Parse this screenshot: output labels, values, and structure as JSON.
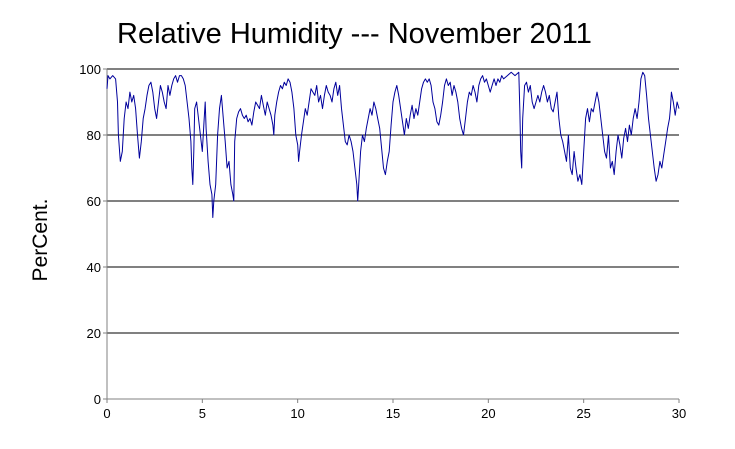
{
  "chart_data": {
    "type": "line",
    "title": "Relative Humidity --- November 2011",
    "xlabel": "",
    "ylabel": "PerCent.",
    "xlim": [
      0,
      30
    ],
    "ylim": [
      0,
      100
    ],
    "xticks": [
      0,
      5,
      10,
      15,
      20,
      25,
      30
    ],
    "yticks": [
      0,
      20,
      40,
      60,
      80,
      100
    ],
    "grid": "horizontal",
    "line_color": "#00009c",
    "series": [
      {
        "values": [
          [
            0.0,
            94
          ],
          [
            0.05,
            98
          ],
          [
            0.15,
            97
          ],
          [
            0.3,
            98
          ],
          [
            0.45,
            97
          ],
          [
            0.55,
            90
          ],
          [
            0.6,
            80
          ],
          [
            0.7,
            72
          ],
          [
            0.8,
            75
          ],
          [
            0.9,
            85
          ],
          [
            1.0,
            90
          ],
          [
            1.1,
            88
          ],
          [
            1.2,
            93
          ],
          [
            1.3,
            90
          ],
          [
            1.4,
            92
          ],
          [
            1.5,
            88
          ],
          [
            1.6,
            80
          ],
          [
            1.7,
            73
          ],
          [
            1.8,
            78
          ],
          [
            1.9,
            85
          ],
          [
            2.0,
            88
          ],
          [
            2.1,
            92
          ],
          [
            2.2,
            95
          ],
          [
            2.3,
            96
          ],
          [
            2.4,
            93
          ],
          [
            2.5,
            88
          ],
          [
            2.6,
            85
          ],
          [
            2.7,
            90
          ],
          [
            2.8,
            95
          ],
          [
            2.9,
            93
          ],
          [
            3.0,
            90
          ],
          [
            3.1,
            88
          ],
          [
            3.2,
            95
          ],
          [
            3.3,
            92
          ],
          [
            3.4,
            95
          ],
          [
            3.5,
            97
          ],
          [
            3.6,
            98
          ],
          [
            3.7,
            96
          ],
          [
            3.8,
            98
          ],
          [
            3.9,
            98
          ],
          [
            4.0,
            97
          ],
          [
            4.1,
            95
          ],
          [
            4.2,
            90
          ],
          [
            4.3,
            85
          ],
          [
            4.4,
            78
          ],
          [
            4.45,
            70
          ],
          [
            4.5,
            65
          ],
          [
            4.55,
            75
          ],
          [
            4.6,
            88
          ],
          [
            4.7,
            90
          ],
          [
            4.8,
            85
          ],
          [
            4.9,
            80
          ],
          [
            5.0,
            75
          ],
          [
            5.1,
            85
          ],
          [
            5.15,
            90
          ],
          [
            5.2,
            82
          ],
          [
            5.3,
            72
          ],
          [
            5.4,
            65
          ],
          [
            5.5,
            62
          ],
          [
            5.55,
            55
          ],
          [
            5.6,
            60
          ],
          [
            5.7,
            65
          ],
          [
            5.8,
            80
          ],
          [
            5.9,
            88
          ],
          [
            6.0,
            92
          ],
          [
            6.1,
            85
          ],
          [
            6.2,
            78
          ],
          [
            6.3,
            70
          ],
          [
            6.4,
            72
          ],
          [
            6.5,
            65
          ],
          [
            6.6,
            62
          ],
          [
            6.65,
            60
          ],
          [
            6.7,
            78
          ],
          [
            6.8,
            85
          ],
          [
            6.9,
            87
          ],
          [
            7.0,
            88
          ],
          [
            7.1,
            86
          ],
          [
            7.2,
            85
          ],
          [
            7.3,
            86
          ],
          [
            7.4,
            84
          ],
          [
            7.5,
            85
          ],
          [
            7.6,
            83
          ],
          [
            7.7,
            87
          ],
          [
            7.8,
            90
          ],
          [
            7.9,
            89
          ],
          [
            8.0,
            88
          ],
          [
            8.1,
            92
          ],
          [
            8.2,
            89
          ],
          [
            8.3,
            86
          ],
          [
            8.4,
            90
          ],
          [
            8.5,
            88
          ],
          [
            8.6,
            86
          ],
          [
            8.7,
            83
          ],
          [
            8.75,
            80
          ],
          [
            8.8,
            86
          ],
          [
            8.9,
            90
          ],
          [
            9.0,
            93
          ],
          [
            9.1,
            95
          ],
          [
            9.2,
            94
          ],
          [
            9.3,
            96
          ],
          [
            9.4,
            95
          ],
          [
            9.5,
            97
          ],
          [
            9.6,
            96
          ],
          [
            9.7,
            93
          ],
          [
            9.8,
            88
          ],
          [
            9.9,
            80
          ],
          [
            10.0,
            77
          ],
          [
            10.05,
            72
          ],
          [
            10.1,
            75
          ],
          [
            10.2,
            80
          ],
          [
            10.3,
            84
          ],
          [
            10.4,
            88
          ],
          [
            10.5,
            86
          ],
          [
            10.6,
            90
          ],
          [
            10.7,
            94
          ],
          [
            10.8,
            93
          ],
          [
            10.9,
            92
          ],
          [
            11.0,
            95
          ],
          [
            11.1,
            90
          ],
          [
            11.2,
            92
          ],
          [
            11.3,
            88
          ],
          [
            11.4,
            92
          ],
          [
            11.5,
            95
          ],
          [
            11.6,
            93
          ],
          [
            11.7,
            92
          ],
          [
            11.8,
            90
          ],
          [
            11.9,
            94
          ],
          [
            12.0,
            96
          ],
          [
            12.1,
            92
          ],
          [
            12.2,
            95
          ],
          [
            12.3,
            88
          ],
          [
            12.4,
            83
          ],
          [
            12.5,
            78
          ],
          [
            12.6,
            77
          ],
          [
            12.7,
            80
          ],
          [
            12.8,
            78
          ],
          [
            12.9,
            75
          ],
          [
            13.0,
            70
          ],
          [
            13.1,
            65
          ],
          [
            13.15,
            60
          ],
          [
            13.2,
            65
          ],
          [
            13.3,
            75
          ],
          [
            13.4,
            80
          ],
          [
            13.5,
            78
          ],
          [
            13.6,
            82
          ],
          [
            13.7,
            85
          ],
          [
            13.8,
            88
          ],
          [
            13.9,
            86
          ],
          [
            14.0,
            90
          ],
          [
            14.1,
            88
          ],
          [
            14.2,
            85
          ],
          [
            14.3,
            82
          ],
          [
            14.4,
            76
          ],
          [
            14.5,
            70
          ],
          [
            14.6,
            68
          ],
          [
            14.7,
            72
          ],
          [
            14.8,
            75
          ],
          [
            14.9,
            83
          ],
          [
            15.0,
            90
          ],
          [
            15.1,
            93
          ],
          [
            15.2,
            95
          ],
          [
            15.3,
            92
          ],
          [
            15.4,
            88
          ],
          [
            15.5,
            84
          ],
          [
            15.6,
            80
          ],
          [
            15.7,
            85
          ],
          [
            15.8,
            82
          ],
          [
            15.9,
            86
          ],
          [
            16.0,
            89
          ],
          [
            16.1,
            85
          ],
          [
            16.2,
            88
          ],
          [
            16.3,
            86
          ],
          [
            16.4,
            90
          ],
          [
            16.5,
            94
          ],
          [
            16.6,
            96
          ],
          [
            16.7,
            97
          ],
          [
            16.8,
            96
          ],
          [
            16.9,
            97
          ],
          [
            17.0,
            95
          ],
          [
            17.1,
            90
          ],
          [
            17.2,
            88
          ],
          [
            17.3,
            84
          ],
          [
            17.4,
            83
          ],
          [
            17.5,
            86
          ],
          [
            17.6,
            90
          ],
          [
            17.7,
            95
          ],
          [
            17.8,
            97
          ],
          [
            17.9,
            95
          ],
          [
            18.0,
            96
          ],
          [
            18.1,
            92
          ],
          [
            18.2,
            95
          ],
          [
            18.3,
            93
          ],
          [
            18.4,
            90
          ],
          [
            18.5,
            85
          ],
          [
            18.6,
            82
          ],
          [
            18.7,
            80
          ],
          [
            18.8,
            85
          ],
          [
            18.9,
            90
          ],
          [
            19.0,
            93
          ],
          [
            19.1,
            92
          ],
          [
            19.2,
            95
          ],
          [
            19.3,
            93
          ],
          [
            19.4,
            90
          ],
          [
            19.5,
            95
          ],
          [
            19.6,
            97
          ],
          [
            19.7,
            98
          ],
          [
            19.8,
            96
          ],
          [
            19.9,
            97
          ],
          [
            20.0,
            95
          ],
          [
            20.1,
            93
          ],
          [
            20.2,
            95
          ],
          [
            20.3,
            97
          ],
          [
            20.4,
            95
          ],
          [
            20.5,
            97
          ],
          [
            20.6,
            96
          ],
          [
            20.7,
            98
          ],
          [
            20.8,
            97
          ],
          [
            21.0,
            98
          ],
          [
            21.2,
            99
          ],
          [
            21.4,
            98
          ],
          [
            21.6,
            99
          ],
          [
            21.65,
            88
          ],
          [
            21.7,
            75
          ],
          [
            21.75,
            70
          ],
          [
            21.8,
            85
          ],
          [
            21.9,
            95
          ],
          [
            22.0,
            96
          ],
          [
            22.1,
            93
          ],
          [
            22.2,
            95
          ],
          [
            22.3,
            90
          ],
          [
            22.4,
            88
          ],
          [
            22.5,
            90
          ],
          [
            22.6,
            92
          ],
          [
            22.7,
            90
          ],
          [
            22.8,
            93
          ],
          [
            22.9,
            95
          ],
          [
            23.0,
            93
          ],
          [
            23.1,
            90
          ],
          [
            23.2,
            92
          ],
          [
            23.3,
            88
          ],
          [
            23.4,
            87
          ],
          [
            23.5,
            90
          ],
          [
            23.6,
            93
          ],
          [
            23.7,
            85
          ],
          [
            23.8,
            80
          ],
          [
            23.9,
            78
          ],
          [
            24.0,
            75
          ],
          [
            24.1,
            72
          ],
          [
            24.2,
            80
          ],
          [
            24.3,
            70
          ],
          [
            24.4,
            68
          ],
          [
            24.5,
            75
          ],
          [
            24.6,
            70
          ],
          [
            24.7,
            66
          ],
          [
            24.8,
            68
          ],
          [
            24.9,
            65
          ],
          [
            25.0,
            75
          ],
          [
            25.1,
            85
          ],
          [
            25.2,
            88
          ],
          [
            25.3,
            84
          ],
          [
            25.4,
            88
          ],
          [
            25.5,
            87
          ],
          [
            25.6,
            90
          ],
          [
            25.7,
            93
          ],
          [
            25.8,
            90
          ],
          [
            25.9,
            85
          ],
          [
            26.0,
            80
          ],
          [
            26.1,
            75
          ],
          [
            26.2,
            73
          ],
          [
            26.3,
            80
          ],
          [
            26.4,
            70
          ],
          [
            26.5,
            72
          ],
          [
            26.6,
            68
          ],
          [
            26.7,
            75
          ],
          [
            26.8,
            80
          ],
          [
            26.9,
            77
          ],
          [
            27.0,
            73
          ],
          [
            27.1,
            79
          ],
          [
            27.2,
            82
          ],
          [
            27.3,
            78
          ],
          [
            27.4,
            83
          ],
          [
            27.5,
            80
          ],
          [
            27.6,
            85
          ],
          [
            27.7,
            88
          ],
          [
            27.8,
            85
          ],
          [
            27.9,
            90
          ],
          [
            28.0,
            97
          ],
          [
            28.1,
            99
          ],
          [
            28.2,
            98
          ],
          [
            28.3,
            92
          ],
          [
            28.4,
            85
          ],
          [
            28.5,
            80
          ],
          [
            28.6,
            75
          ],
          [
            28.7,
            70
          ],
          [
            28.8,
            66
          ],
          [
            28.9,
            68
          ],
          [
            29.0,
            72
          ],
          [
            29.1,
            70
          ],
          [
            29.2,
            74
          ],
          [
            29.3,
            78
          ],
          [
            29.4,
            82
          ],
          [
            29.5,
            85
          ],
          [
            29.55,
            88
          ],
          [
            29.6,
            93
          ],
          [
            29.7,
            90
          ],
          [
            29.8,
            86
          ],
          [
            29.9,
            90
          ],
          [
            30.0,
            88
          ]
        ]
      }
    ]
  }
}
